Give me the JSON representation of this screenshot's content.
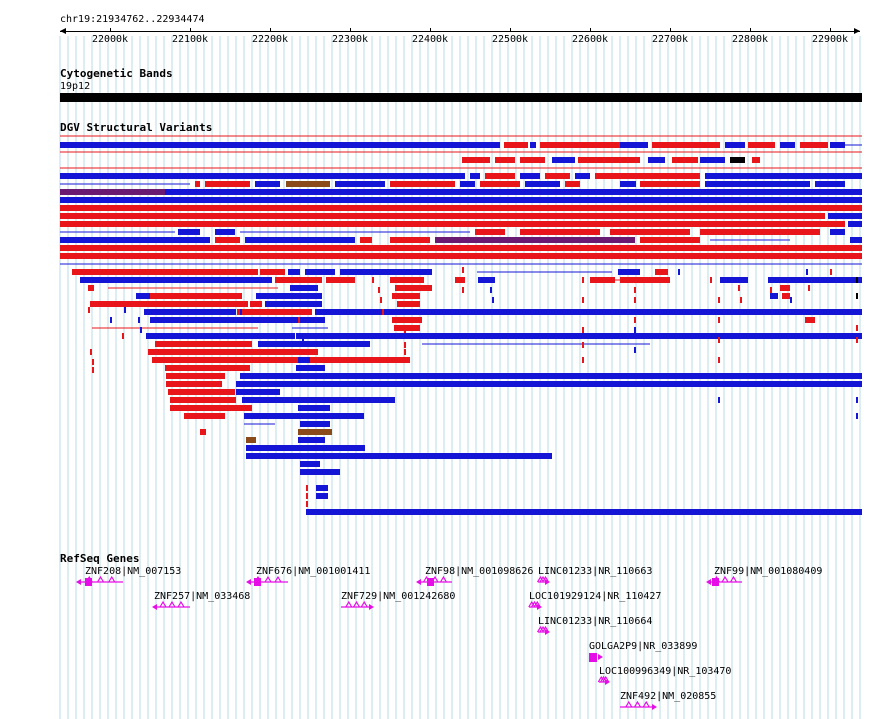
{
  "locus": "chr19:21934762..22934474",
  "ruler": {
    "ticks": [
      "22000k",
      "22100k",
      "22200k",
      "22300k",
      "22400k",
      "22500k",
      "22600k",
      "22700k",
      "22800k",
      "22900k"
    ]
  },
  "cytoband": {
    "title": "Cytogenetic Bands",
    "band": "19p12"
  },
  "dgv": {
    "title": "DGV Structural Variants"
  },
  "refseq": {
    "title": "RefSeq Genes",
    "genes": [
      {
        "label": "ZNF208|NM_007153"
      },
      {
        "label": "ZNF676|NM_001001411"
      },
      {
        "label": "ZNF98|NM_001098626"
      },
      {
        "label": "LINC01233|NR_110663"
      },
      {
        "label": "ZNF99|NM_001080409"
      },
      {
        "label": "ZNF257|NM_033468"
      },
      {
        "label": "ZNF729|NM_001242680"
      },
      {
        "label": "LOC101929124|NR_110427"
      },
      {
        "label": "LINC01233|NR_110664"
      },
      {
        "label": "GOLGA2P9|NR_033899"
      },
      {
        "label": "LOC100996349|NR_103470"
      },
      {
        "label": "ZNF492|NM_020855"
      }
    ]
  },
  "colors": {
    "gain": "#e8151a",
    "loss": "#1515d6",
    "complex": "#8b4a1a",
    "inversion": "#6a1a70",
    "gene": "#e60ee6",
    "grid": "#b8dde8"
  }
}
